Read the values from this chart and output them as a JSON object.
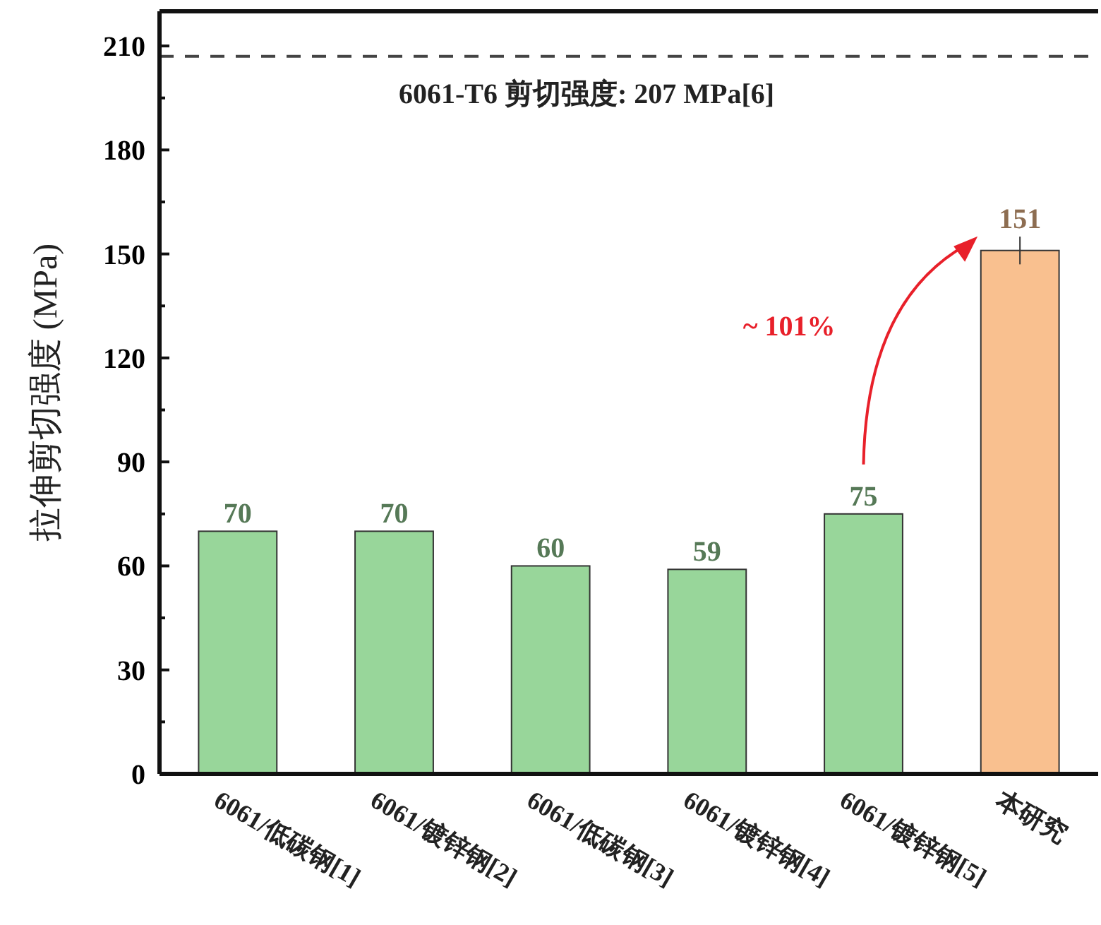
{
  "chart_data": {
    "type": "bar",
    "ylabel": "拉伸剪切强度 (MPa)",
    "categories": [
      "6061/低碳钢[1]",
      "6061/镀锌钢[2]",
      "6061/低碳钢[3]",
      "6061/镀锌钢[4]",
      "6061/镀锌钢[5]",
      "本研究"
    ],
    "values": [
      70,
      70,
      60,
      59,
      75,
      151
    ],
    "errors": [
      null,
      null,
      null,
      null,
      null,
      4
    ],
    "colors": [
      "#98d69a",
      "#98d69a",
      "#98d69a",
      "#98d69a",
      "#98d69a",
      "#f9c08f"
    ],
    "data_labels": true,
    "ylim": [
      0,
      220
    ],
    "yticks": [
      0,
      30,
      60,
      90,
      120,
      150,
      180,
      210
    ],
    "ref_lines": [
      {
        "axis": "y",
        "value": 207,
        "label": "6061-T6 剪切强度: 207 MPa[6]",
        "color": "#444444",
        "line_style": "dashed"
      }
    ],
    "annotations": [
      "~ 101%"
    ],
    "grid": false
  }
}
